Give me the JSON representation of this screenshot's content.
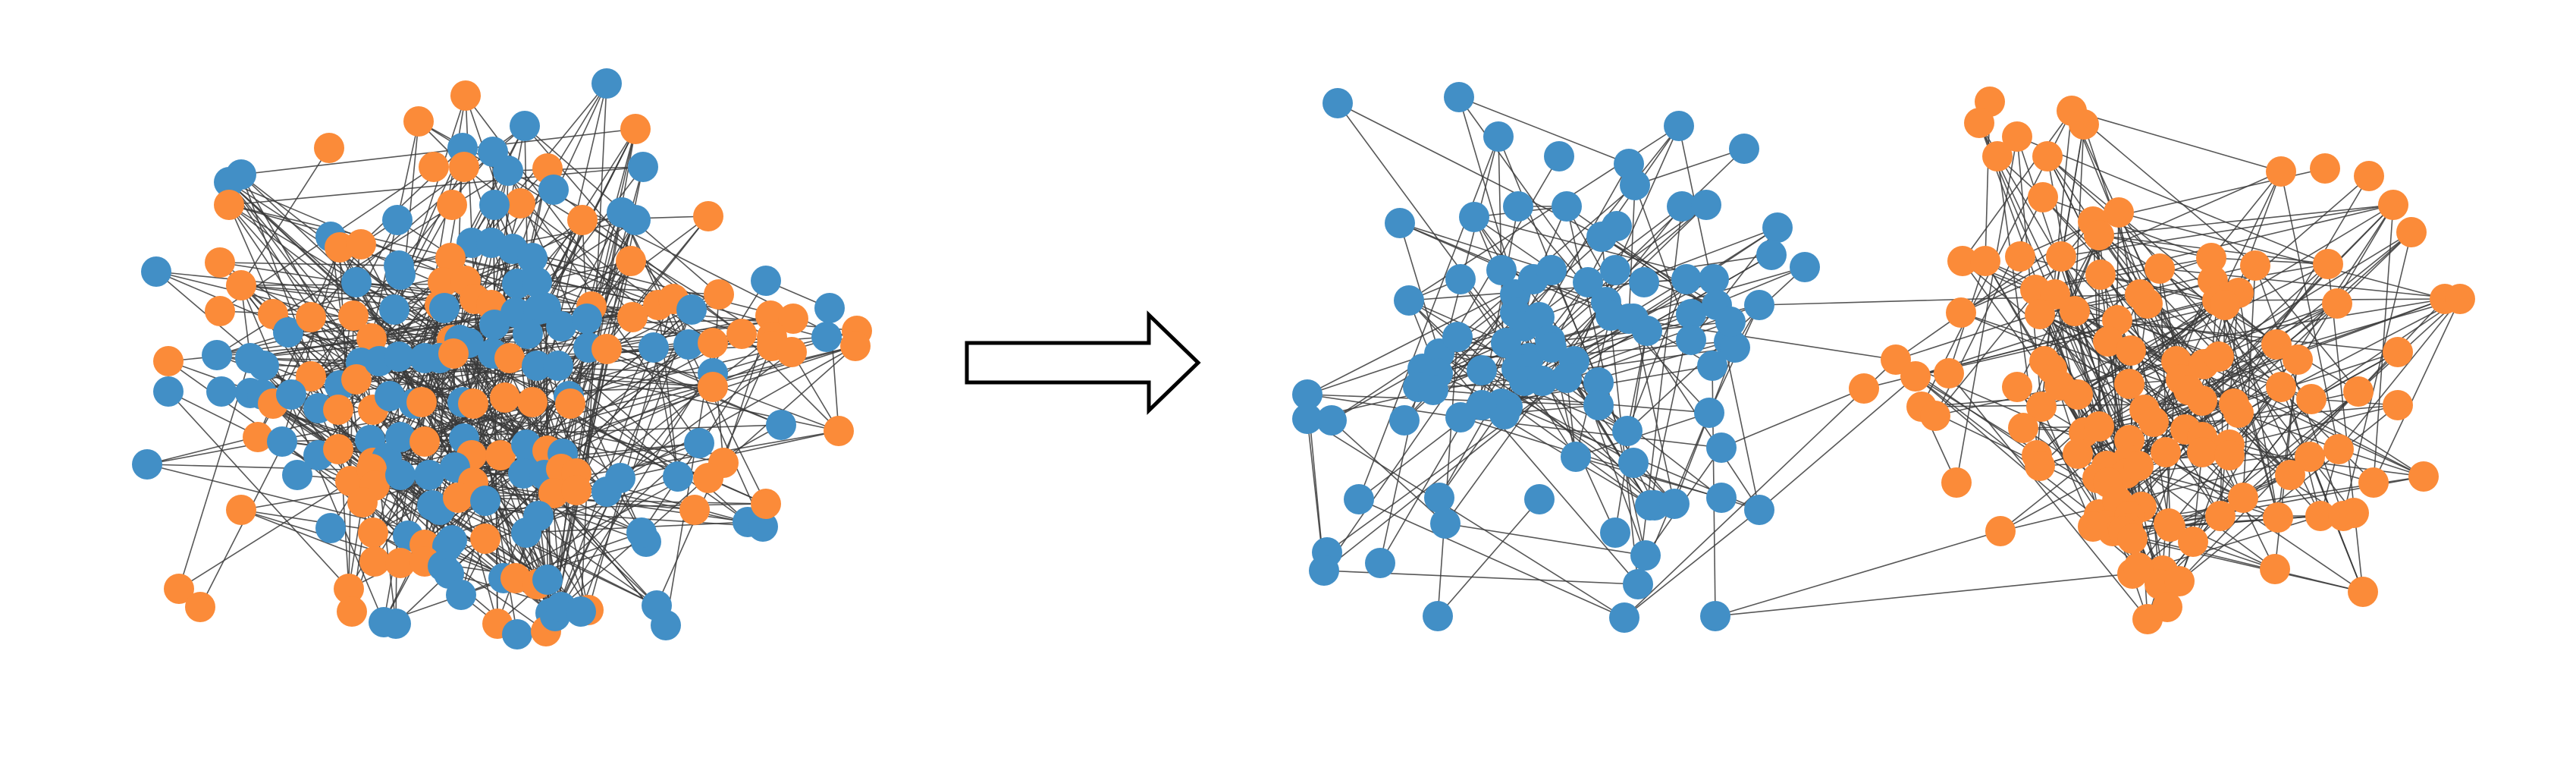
{
  "colors": {
    "group_a": "#428fc6",
    "group_b": "#fb8b39",
    "edge": "#3a3a3a",
    "arrow_stroke": "#000000",
    "arrow_fill": "#ffffff",
    "background": "#ffffff"
  },
  "diagram": {
    "panels": [
      {
        "name": "mixed-network",
        "description_state": "before",
        "node_groups": [
          "group_a",
          "group_b"
        ]
      },
      {
        "name": "separated-network",
        "description_state": "after",
        "node_groups": [
          "group_a",
          "group_b"
        ]
      }
    ],
    "connector": {
      "icon": "right-arrow-icon"
    }
  }
}
